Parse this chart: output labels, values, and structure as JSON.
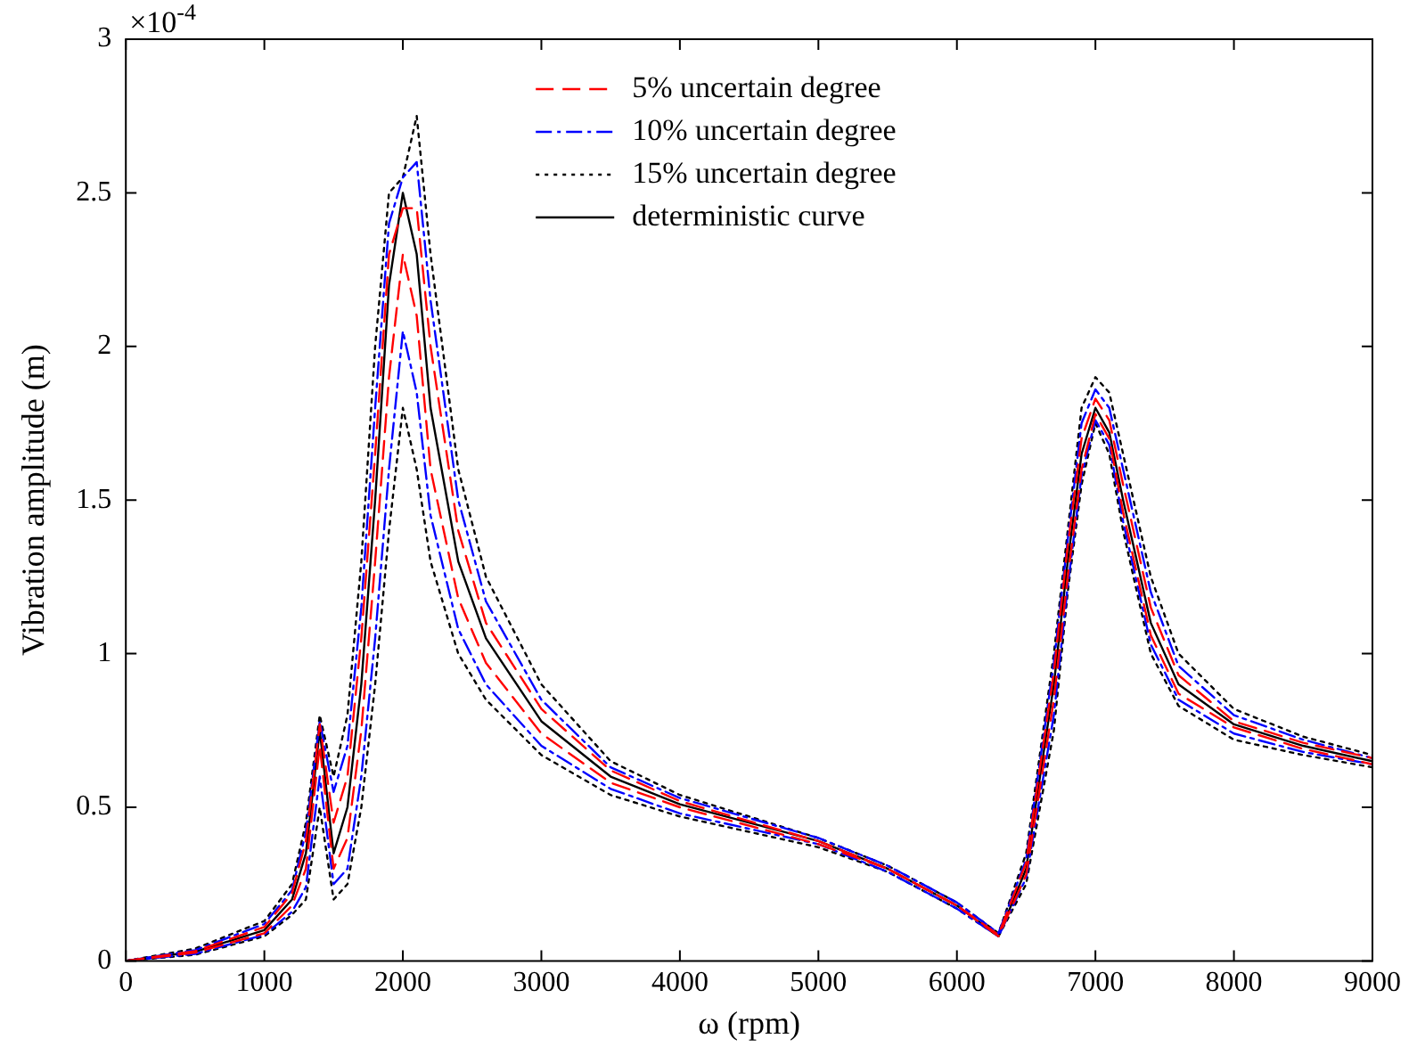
{
  "chart_data": {
    "type": "line",
    "xlabel": "ω (rpm)",
    "ylabel": "Vibration amplitude (m)",
    "annotations": [
      "×10$^{-4}$"
    ],
    "x": [
      0,
      500,
      1000,
      1200,
      1300,
      1400,
      1500,
      1600,
      1700,
      1800,
      1900,
      2000,
      2100,
      2200,
      2400,
      2600,
      3000,
      3500,
      4000,
      5000,
      5500,
      6000,
      6300,
      6500,
      6700,
      6800,
      6900,
      7000,
      7100,
      7200,
      7400,
      7600,
      8000,
      8500,
      9000
    ],
    "xlim": [
      0,
      9000
    ],
    "xticks": [
      0,
      1000,
      2000,
      3000,
      4000,
      5000,
      6000,
      7000,
      8000,
      9000
    ],
    "ylim": [
      0,
      3
    ],
    "yticks": [
      0,
      0.5,
      1,
      1.5,
      2,
      2.5,
      3
    ],
    "grid": false,
    "legend": "top right",
    "marker": "none",
    "series": [
      {
        "name": "5% uncertain degree",
        "color": "#ff0000",
        "line_style": "dashed",
        "values": [
          0,
          0.032,
          0.11,
          0.22,
          0.39,
          0.77,
          0.45,
          0.6,
          1.05,
          1.65,
          2.3,
          2.45,
          2.45,
          2.0,
          1.4,
          1.1,
          0.82,
          0.62,
          0.52,
          0.39,
          0.3,
          0.18,
          0.085,
          0.32,
          0.94,
          1.35,
          1.7,
          1.83,
          1.76,
          1.55,
          1.15,
          0.93,
          0.78,
          0.71,
          0.66
        ]
      },
      {
        "color": "#ff0000",
        "line_style": "dashed",
        "values": [
          0,
          0.027,
          0.09,
          0.18,
          0.3,
          0.7,
          0.3,
          0.4,
          0.75,
          1.3,
          1.9,
          2.3,
          2.1,
          1.6,
          1.18,
          0.97,
          0.74,
          0.58,
          0.5,
          0.38,
          0.3,
          0.18,
          0.08,
          0.28,
          0.85,
          1.25,
          1.6,
          1.78,
          1.7,
          1.46,
          1.06,
          0.87,
          0.76,
          0.69,
          0.64
        ]
      },
      {
        "name": "10% uncertain degree",
        "color": "#0000ff",
        "line_style": "dashdot",
        "values": [
          0,
          0.035,
          0.12,
          0.23,
          0.42,
          0.78,
          0.55,
          0.7,
          1.15,
          1.8,
          2.4,
          2.55,
          2.6,
          2.15,
          1.5,
          1.17,
          0.85,
          0.63,
          0.53,
          0.4,
          0.31,
          0.19,
          0.09,
          0.33,
          0.97,
          1.37,
          1.75,
          1.86,
          1.8,
          1.6,
          1.2,
          0.96,
          0.8,
          0.72,
          0.66
        ]
      },
      {
        "color": "#0000ff",
        "line_style": "dashdot",
        "values": [
          0,
          0.023,
          0.085,
          0.16,
          0.24,
          0.6,
          0.25,
          0.3,
          0.6,
          1.05,
          1.6,
          2.05,
          1.85,
          1.45,
          1.08,
          0.9,
          0.7,
          0.56,
          0.48,
          0.38,
          0.29,
          0.17,
          0.08,
          0.27,
          0.8,
          1.22,
          1.58,
          1.76,
          1.68,
          1.43,
          1.03,
          0.85,
          0.74,
          0.68,
          0.64
        ]
      },
      {
        "name": "15% uncertain degree",
        "color": "#000000",
        "line_style": "dotted",
        "values": [
          0,
          0.04,
          0.13,
          0.25,
          0.45,
          0.8,
          0.6,
          0.8,
          1.3,
          2.0,
          2.5,
          2.55,
          2.75,
          2.3,
          1.6,
          1.25,
          0.9,
          0.65,
          0.54,
          0.4,
          0.31,
          0.19,
          0.09,
          0.35,
          1.0,
          1.4,
          1.8,
          1.9,
          1.85,
          1.65,
          1.25,
          1.0,
          0.82,
          0.73,
          0.67
        ]
      },
      {
        "color": "#000000",
        "line_style": "dotted",
        "values": [
          0,
          0.02,
          0.08,
          0.15,
          0.2,
          0.5,
          0.2,
          0.25,
          0.5,
          0.9,
          1.4,
          1.8,
          1.6,
          1.3,
          1.0,
          0.85,
          0.67,
          0.54,
          0.47,
          0.37,
          0.29,
          0.17,
          0.08,
          0.25,
          0.75,
          1.2,
          1.55,
          1.75,
          1.65,
          1.4,
          1.0,
          0.83,
          0.72,
          0.67,
          0.63
        ]
      },
      {
        "name": "deterministic curve",
        "color": "#000000",
        "line_style": "solid",
        "values": [
          0,
          0.03,
          0.1,
          0.2,
          0.35,
          0.75,
          0.35,
          0.5,
          0.9,
          1.5,
          2.2,
          2.5,
          2.3,
          1.8,
          1.3,
          1.05,
          0.78,
          0.6,
          0.51,
          0.39,
          0.3,
          0.18,
          0.08,
          0.3,
          0.9,
          1.3,
          1.65,
          1.8,
          1.72,
          1.5,
          1.1,
          0.9,
          0.77,
          0.7,
          0.65
        ]
      }
    ]
  }
}
